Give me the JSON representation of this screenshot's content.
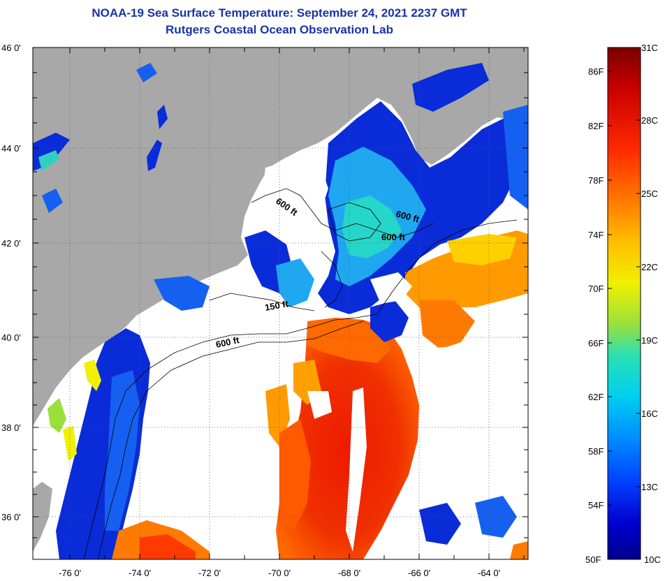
{
  "title": {
    "line1": "NOAA-19 Sea Surface Temperature:  September 24, 2021 2237 GMT",
    "line2": "Rutgers Coastal Ocean Observation Lab"
  },
  "map": {
    "lat_labels": [
      "46 0'",
      "44 0'",
      "42 0'",
      "40 0'",
      "38 0'",
      "36 0'"
    ],
    "lon_labels": [
      "-76 0'",
      "-74 0'",
      "-72 0'",
      "-70 0'",
      "-68 0'",
      "-66 0'",
      "-64 0'"
    ],
    "lat_range": [
      35.0,
      46.0
    ],
    "lon_range": [
      -77.0,
      -63.0
    ],
    "contour_labels": [
      "600 ft",
      "600 ft",
      "600 ft",
      "150 ft",
      "600 ft"
    ]
  },
  "colorbar": {
    "fahrenheit": [
      "86F",
      "82F",
      "78F",
      "74F",
      "70F",
      "66F",
      "62F",
      "58F",
      "54F",
      "50F"
    ],
    "celsius": [
      "31C",
      "28C",
      "25C",
      "22C",
      "19C",
      "16C",
      "13C",
      "10C"
    ],
    "colors": [
      "#7a0000",
      "#c80000",
      "#ff2a00",
      "#ff7a00",
      "#ffbe00",
      "#f0f000",
      "#9be03a",
      "#2ce0b0",
      "#00d0f0",
      "#0090ff",
      "#0040ff",
      "#0000d0",
      "#00008c"
    ]
  },
  "colors": {
    "land": "#a8a8a8",
    "cloud": "#ffffff",
    "title": "#1a33a8"
  }
}
